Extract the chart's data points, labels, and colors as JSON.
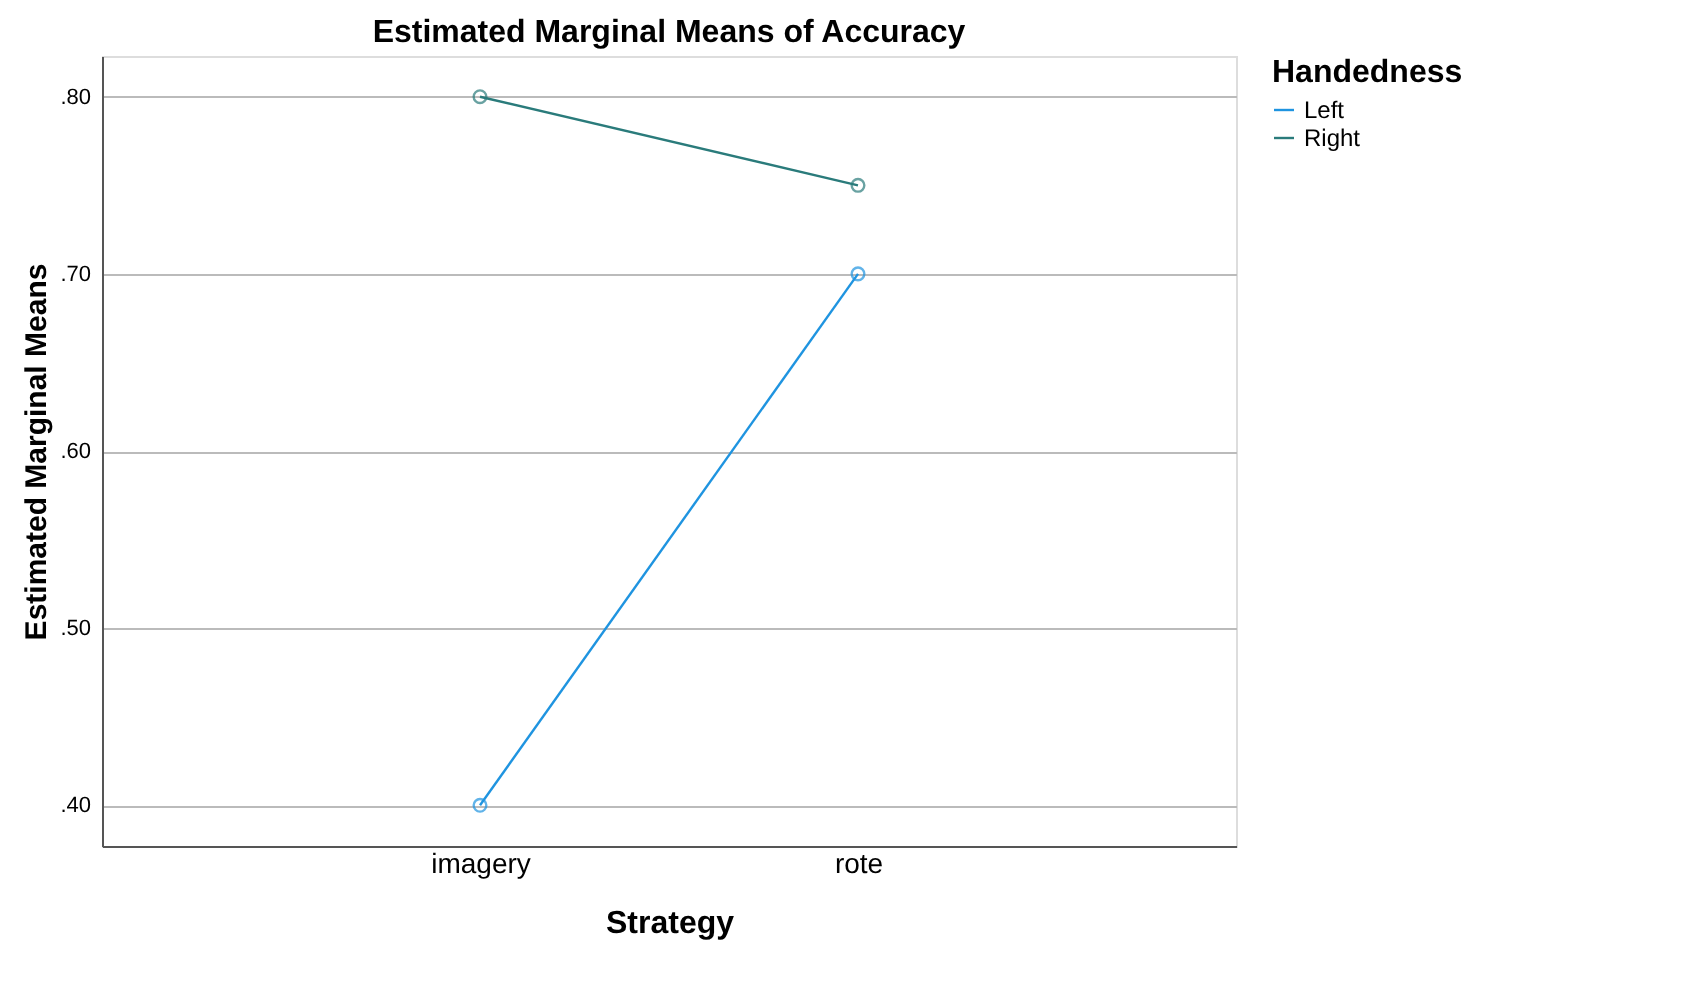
{
  "chart_data": {
    "type": "line",
    "title": "Estimated Marginal Means of Accuracy",
    "xlabel": "Strategy",
    "ylabel": "Estimated Marginal Means",
    "legend_title": "Handedness",
    "categories": [
      "imagery",
      "rote"
    ],
    "series": [
      {
        "name": "Left",
        "color": "#1f94e0",
        "values": [
          0.4,
          0.7
        ]
      },
      {
        "name": "Right",
        "color": "#2a7b7b",
        "values": [
          0.8,
          0.75
        ]
      }
    ],
    "ylim": [
      0.377,
      0.823
    ],
    "yticks": [
      {
        "value": 0.4,
        "label": ".40"
      },
      {
        "value": 0.5,
        "label": ".50"
      },
      {
        "value": 0.6,
        "label": ".60"
      },
      {
        "value": 0.7,
        "label": ".70"
      },
      {
        "value": 0.8,
        "label": ".80"
      }
    ],
    "grid": "y",
    "legend": "top right",
    "marker": "circle",
    "line_style": "solid"
  }
}
